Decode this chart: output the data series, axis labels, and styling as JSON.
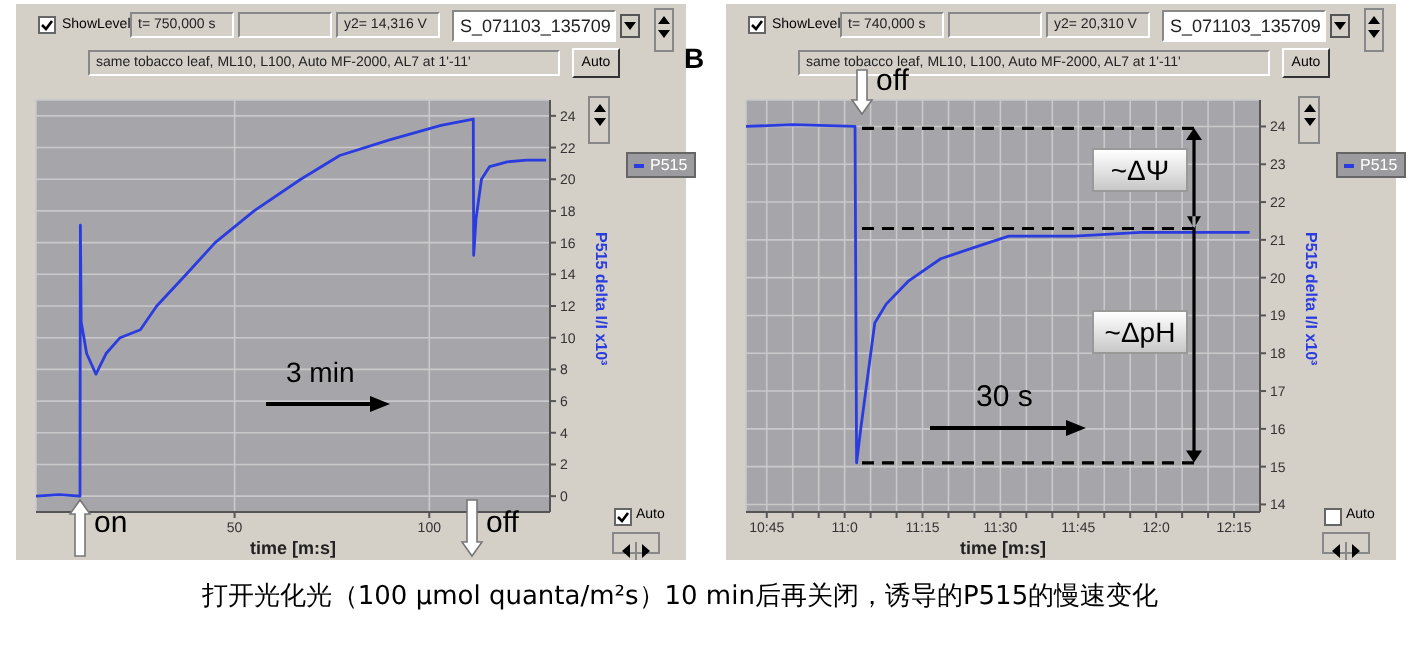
{
  "chart_data": [
    {
      "type": "line",
      "ylabel": "P515 delta I/I x10³",
      "xlabel": "time [m:s]",
      "legend": "right",
      "grid": true,
      "xlim": [
        -1,
        131
      ],
      "xticks": [
        50,
        100
      ],
      "ylim": [
        -1,
        25
      ],
      "yticks": [
        0,
        2,
        4,
        6,
        8,
        10,
        12,
        14,
        16,
        18,
        20,
        22,
        24
      ],
      "series": [
        {
          "name": "P515",
          "color": "#2a3be0",
          "x": [
            -1,
            5,
            10.3,
            10.4,
            10.6,
            12,
            14.4,
            17,
            20.6,
            25.8,
            30,
            37.6,
            45,
            55,
            67,
            77,
            90,
            103,
            111.3,
            111.4,
            112,
            113.4,
            115.5,
            120,
            125,
            130
          ],
          "values": [
            0,
            0.1,
            0,
            17.1,
            11,
            9,
            7.7,
            9,
            10,
            10.5,
            12,
            14,
            16,
            18,
            20,
            21.5,
            22.5,
            23.4,
            23.8,
            15.2,
            17.5,
            20,
            20.8,
            21.1,
            21.2,
            21.2
          ]
        }
      ],
      "annotations": [
        "ShowLevel",
        "t= 750,000 s",
        "y2= 14,316 V",
        "S_071103_135709",
        "same tobacco leaf, ML10, L100, Auto MF-2000, AL7 at 1'-11'",
        "Auto",
        "Auto",
        "3 min",
        "on",
        "off",
        "打开光化光（100 μmol quanta/m²s）10 min后再关闭，诱导的P515的慢速变化"
      ]
    },
    {
      "type": "line",
      "title": "B",
      "ylabel": "P515 delta I/I x10³",
      "xlabel": "time [m:s]",
      "legend": "right",
      "grid": true,
      "xlim": [
        641,
        740
      ],
      "xticks": [
        {
          "value": 645,
          "label": "10:45"
        },
        {
          "value": 650,
          "label": null
        },
        {
          "value": 655,
          "label": null
        },
        {
          "value": 660,
          "label": "11:0"
        },
        {
          "value": 665,
          "label": null
        },
        {
          "value": 670,
          "label": null
        },
        {
          "value": 675,
          "label": "11:15"
        },
        {
          "value": 680,
          "label": null
        },
        {
          "value": 685,
          "label": null
        },
        {
          "value": 690,
          "label": "11:30"
        },
        {
          "value": 695,
          "label": null
        },
        {
          "value": 700,
          "label": null
        },
        {
          "value": 705,
          "label": "11:45"
        },
        {
          "value": 710,
          "label": null
        },
        {
          "value": 715,
          "label": null
        },
        {
          "value": 720,
          "label": "12:0"
        },
        {
          "value": 725,
          "label": null
        },
        {
          "value": 730,
          "label": null
        },
        {
          "value": 735,
          "label": "12:15"
        }
      ],
      "ylim": [
        13.8,
        24.7
      ],
      "yticks": [
        14,
        15,
        16,
        17,
        18,
        19,
        20,
        21,
        22,
        23,
        24
      ],
      "series": [
        {
          "name": "P515",
          "color": "#2a3be0",
          "x": [
            641,
            650,
            662,
            662.3,
            663.1,
            665.8,
            668,
            672.2,
            678.5,
            685,
            691.6,
            704.3,
            717,
            738
          ],
          "values": [
            24.0,
            24.05,
            24.0,
            15.1,
            16.0,
            18.8,
            19.3,
            19.9,
            20.5,
            20.8,
            21.1,
            21.1,
            21.2,
            21.2
          ]
        }
      ],
      "ref_lines": [
        {
          "axis": "y",
          "value": 23.95,
          "color": "#000000",
          "line_style": "dashed"
        },
        {
          "axis": "y",
          "value": 21.3,
          "color": "#000000",
          "line_style": "dashed"
        },
        {
          "axis": "y",
          "value": 15.1,
          "color": "#000000",
          "line_style": "dashed"
        }
      ],
      "annotations": [
        "ShowLevel",
        "t= 740,000 s",
        "y2= 20,310 V",
        "S_071103_135709",
        "same tobacco leaf, ML10, L100, Auto MF-2000, AL7 at 1'-11'",
        "Auto",
        "Auto",
        "30 s",
        "off",
        "~ΔΨ",
        "~ΔpH"
      ]
    }
  ]
}
